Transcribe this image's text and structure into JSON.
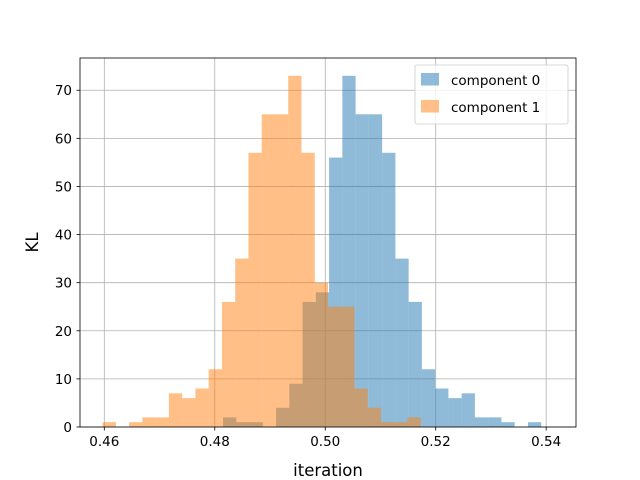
{
  "chart_data": {
    "type": "histogram",
    "title": "",
    "xlabel": "iteration",
    "ylabel": "KL",
    "xlim": [
      0.4556,
      0.5454
    ],
    "ylim": [
      0,
      76.7
    ],
    "xticks": [
      0.46,
      0.48,
      0.5,
      0.52,
      0.54
    ],
    "xtick_labels": [
      "0.46",
      "0.48",
      "0.50",
      "0.52",
      "0.54"
    ],
    "yticks": [
      0,
      10,
      20,
      30,
      40,
      50,
      60,
      70
    ],
    "ytick_labels": [
      "0",
      "10",
      "20",
      "30",
      "40",
      "50",
      "60",
      "70"
    ],
    "grid": true,
    "legend": {
      "placement": "top-right"
    },
    "series": [
      {
        "name": "component 0",
        "color": "#1f77b4",
        "opacity": 0.5,
        "bin_start": 0.4815,
        "bin_width": 0.0024,
        "counts": [
          2,
          1,
          1,
          0,
          4,
          9,
          26,
          28,
          56,
          73,
          65,
          65,
          57,
          35,
          26,
          12,
          8,
          6,
          7,
          2,
          2,
          1,
          0,
          1
        ]
      },
      {
        "name": "component 1",
        "color": "#ff7f0e",
        "opacity": 0.5,
        "bin_start": 0.4597,
        "bin_width": 0.0024,
        "counts": [
          1,
          0,
          1,
          2,
          2,
          7,
          6,
          8,
          12,
          26,
          35,
          57,
          65,
          65,
          73,
          57,
          30,
          25,
          25,
          8,
          4,
          1,
          1,
          2
        ]
      }
    ]
  }
}
